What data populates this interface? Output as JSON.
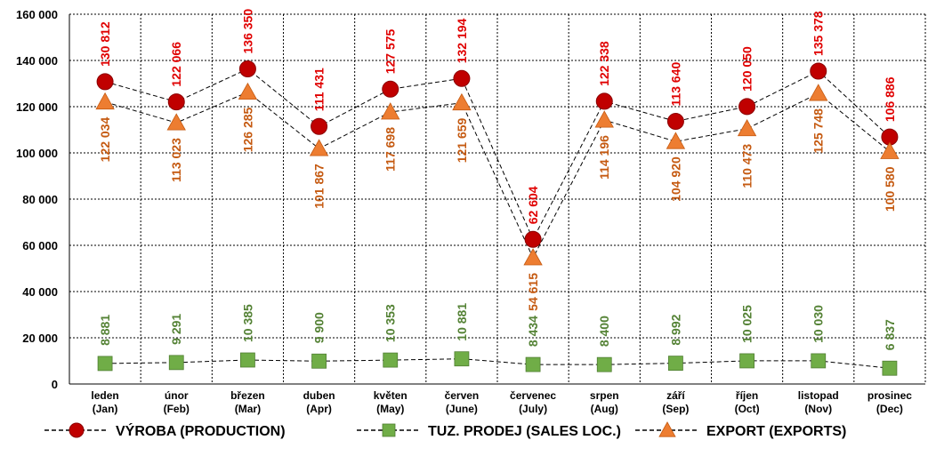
{
  "chart_data": {
    "type": "line",
    "categories": [
      [
        "leden",
        "(Jan)"
      ],
      [
        "únor",
        "(Feb)"
      ],
      [
        "březen",
        "(Mar)"
      ],
      [
        "duben",
        "(Apr)"
      ],
      [
        "květen",
        "(May)"
      ],
      [
        "červen",
        "(June)"
      ],
      [
        "červenec",
        "(July)"
      ],
      [
        "srpen",
        "(Aug)"
      ],
      [
        "září",
        "(Sep)"
      ],
      [
        "říjen",
        "(Oct)"
      ],
      [
        "listopad",
        "(Nov)"
      ],
      [
        "prosinec",
        "(Dec)"
      ]
    ],
    "ylim": [
      0,
      160000
    ],
    "yticks": [
      0,
      20000,
      40000,
      60000,
      80000,
      100000,
      120000,
      140000,
      160000
    ],
    "ytick_labels": [
      "0",
      "20 000",
      "40 000",
      "60 000",
      "80 000",
      "100 000",
      "120 000",
      "140 000",
      "160 000"
    ],
    "grid": "dashed",
    "legend_position": "bottom",
    "series": [
      {
        "name": "VÝROBA (PRODUCTION)",
        "marker": "circle",
        "color": "#c00000",
        "label_color": "#e00000",
        "values": [
          130812,
          122066,
          136350,
          111431,
          127575,
          132194,
          62604,
          122338,
          113640,
          120050,
          135378,
          106886
        ],
        "labels": [
          "130 812",
          "122 066",
          "136 350",
          "111 431",
          "127 575",
          "132 194",
          "62 604",
          "122 338",
          "113 640",
          "120 050",
          "135 378",
          "106 886"
        ]
      },
      {
        "name": "TUZ. PRODEJ (SALES LOC.)",
        "marker": "square",
        "color": "#70ad47",
        "label_color": "#548235",
        "values": [
          8881,
          9291,
          10385,
          9900,
          10353,
          10881,
          8434,
          8400,
          8992,
          10025,
          10030,
          6837
        ],
        "labels": [
          "8 881",
          "9 291",
          "10 385",
          "9 900",
          "10 353",
          "10 881",
          "8 434",
          "8 400",
          "8 992",
          "10 025",
          "10 030",
          "6 837"
        ]
      },
      {
        "name": "EXPORT (EXPORTS)",
        "marker": "triangle",
        "color": "#ed7d31",
        "label_color": "#c55a11",
        "values": [
          122034,
          113023,
          126285,
          101867,
          117698,
          121659,
          54615,
          114196,
          104920,
          110473,
          125748,
          100580
        ],
        "labels": [
          "122 034",
          "113 023",
          "126 285",
          "101 867",
          "117 698",
          "121 659",
          "54 615",
          "114 196",
          "104 920",
          "110 473",
          "125 748",
          "100 580"
        ]
      }
    ]
  }
}
